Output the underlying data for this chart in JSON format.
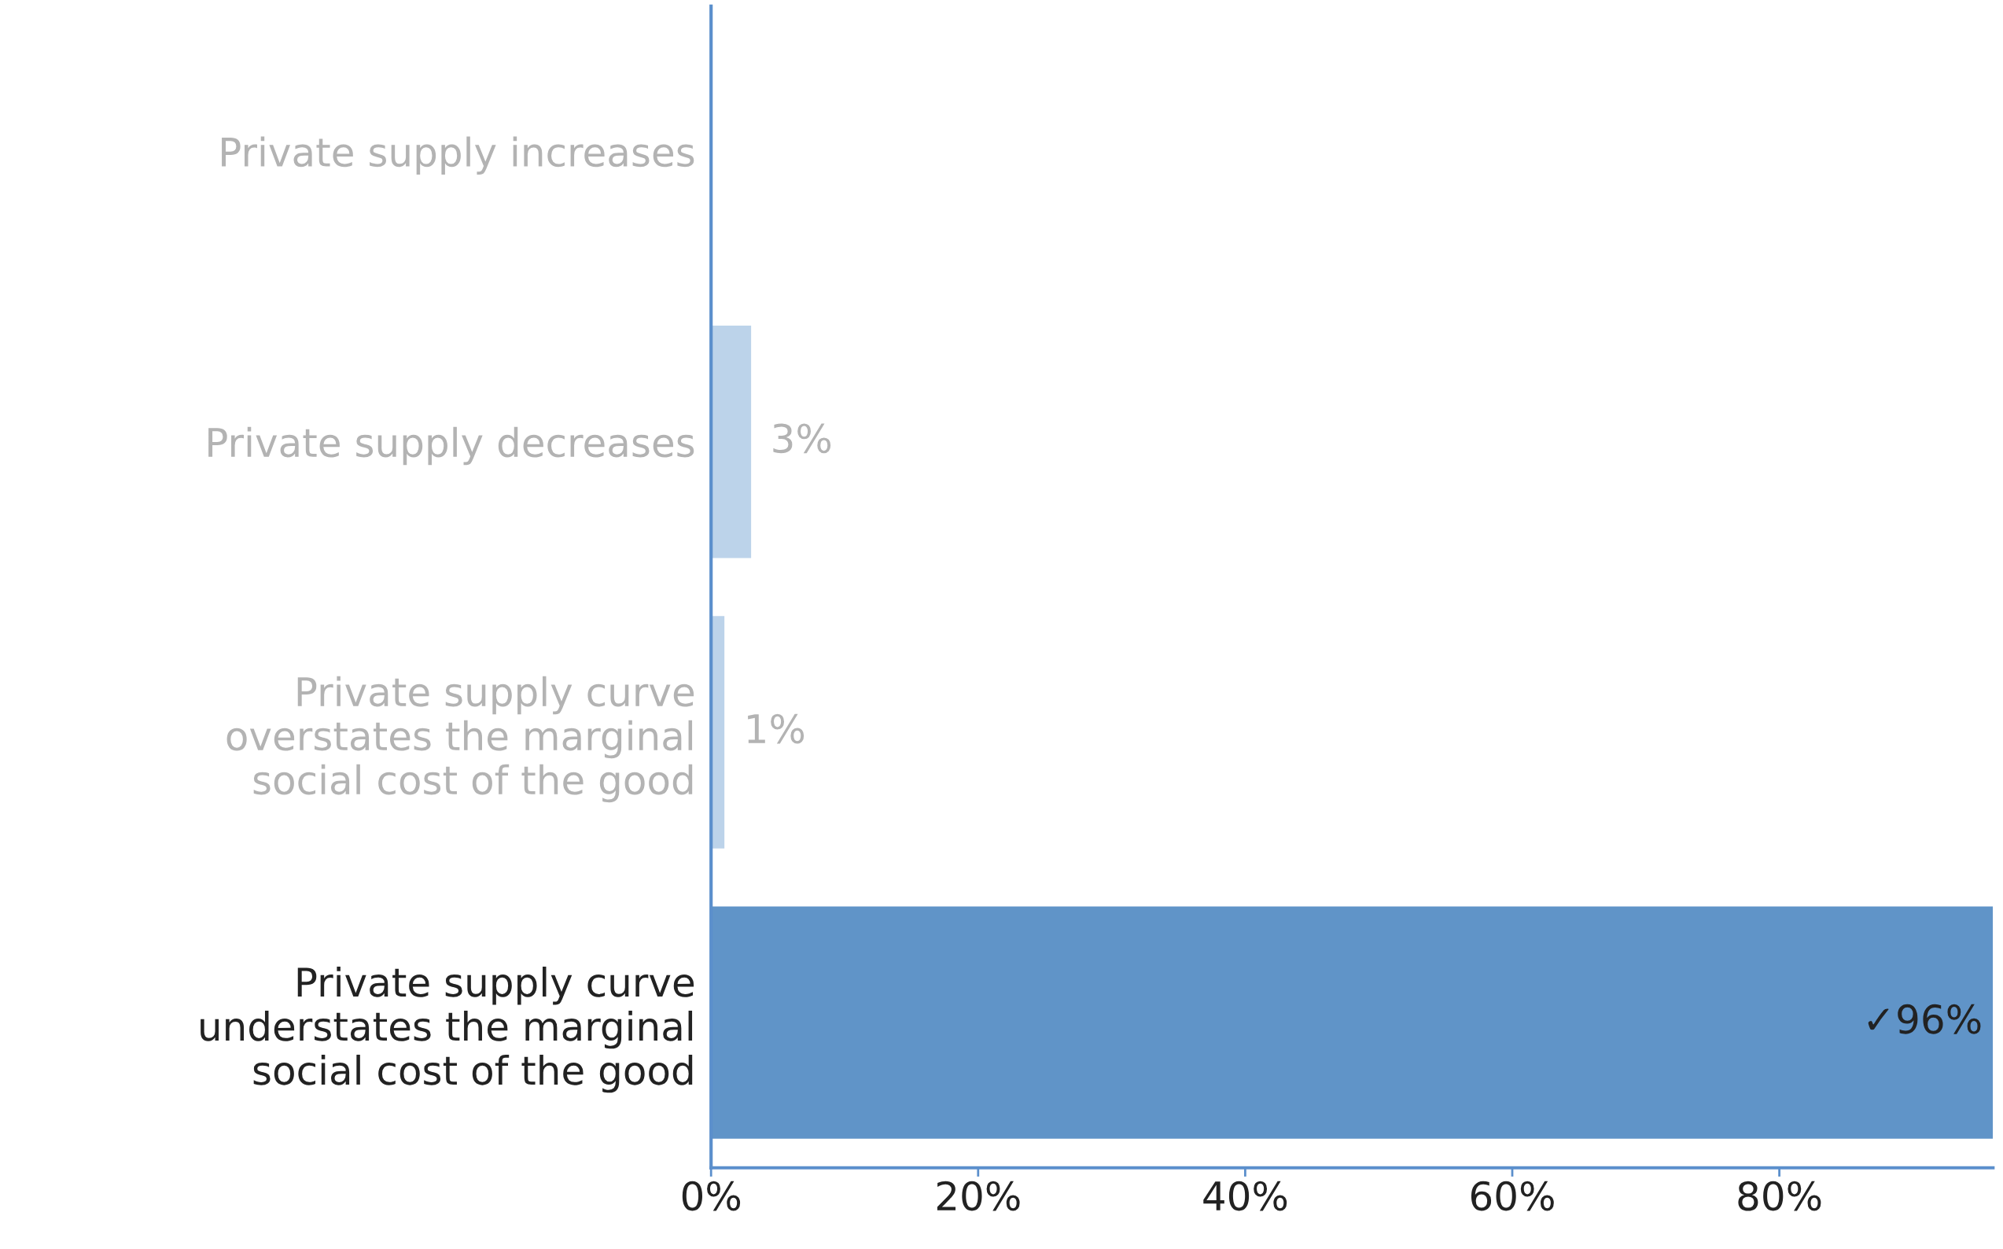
{
  "chart_data": {
    "type": "bar",
    "orientation": "horizontal",
    "categories": [
      "Private supply increases",
      "Private supply decreases",
      "Private supply curve\noverstates the marginal\nsocial cost of the good",
      "Private supply curve\nunderstates the marginal\nsocial cost of the good"
    ],
    "values": [
      0,
      3,
      1,
      96
    ],
    "colors": [
      "#bcd3ea",
      "#bcd3ea",
      "#bcd3ea",
      "#6094c8"
    ],
    "value_labels": [
      null,
      "3%",
      "1%",
      "✓96%"
    ],
    "xlim": [
      0,
      96
    ],
    "xticks": [
      {
        "value": 0,
        "label": "0%"
      },
      {
        "value": 20,
        "label": "20%"
      },
      {
        "value": 40,
        "label": "40%"
      },
      {
        "value": 60,
        "label": "60%"
      },
      {
        "value": 80,
        "label": "80%"
      }
    ],
    "grid": false,
    "legend": false
  }
}
